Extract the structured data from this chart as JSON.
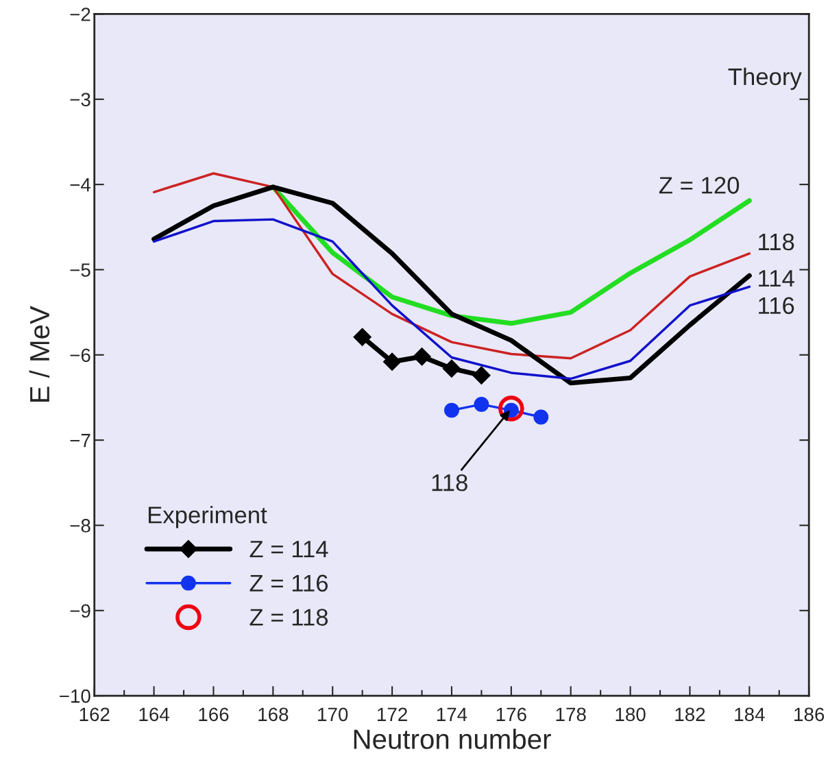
{
  "chart_data": {
    "type": "line",
    "xlabel": "Neutron number",
    "ylabel": "E / MeV",
    "xlim": [
      162,
      186
    ],
    "xticks": [
      162,
      164,
      166,
      168,
      170,
      172,
      174,
      176,
      178,
      180,
      182,
      184,
      186
    ],
    "ylim": [
      -10,
      -2
    ],
    "yticks": [
      -10,
      -9,
      -8,
      -7,
      -6,
      -5,
      -4,
      -3,
      -2
    ],
    "grid": false,
    "legend": "bottom left",
    "legend_title": "Experiment",
    "series": [
      {
        "name": "Z = 120",
        "color": "#22dd22",
        "x": [
          168,
          170,
          172,
          174,
          176,
          178,
          180,
          182,
          184
        ],
        "values": [
          -4.03,
          -4.8,
          -5.32,
          -5.54,
          -5.63,
          -5.5,
          -5.04,
          -4.65,
          -4.19
        ]
      },
      {
        "name": "118",
        "color": "#cc2222",
        "x": [
          164,
          166,
          168,
          170,
          172,
          174,
          176,
          178,
          180,
          182,
          184
        ],
        "values": [
          -4.09,
          -3.87,
          -4.03,
          -5.05,
          -5.52,
          -5.85,
          -5.99,
          -6.04,
          -5.71,
          -5.08,
          -4.81
        ]
      },
      {
        "name": "114",
        "color": "#000000",
        "x": [
          164,
          166,
          168,
          170,
          172,
          174,
          176,
          178,
          180,
          182,
          184
        ],
        "values": [
          -4.64,
          -4.25,
          -4.03,
          -4.22,
          -4.81,
          -5.52,
          -5.83,
          -6.33,
          -6.27,
          -5.65,
          -5.07
        ]
      },
      {
        "name": "116",
        "color": "#1111cc",
        "x": [
          164,
          166,
          168,
          170,
          172,
          174,
          176,
          178,
          180,
          182,
          184
        ],
        "values": [
          -4.67,
          -4.43,
          -4.41,
          -4.67,
          -5.42,
          -6.03,
          -6.21,
          -6.28,
          -6.07,
          -5.42,
          -5.2
        ]
      },
      {
        "name": "Z = 114",
        "color": "#000000",
        "marker": "diamond",
        "x": [
          171,
          172,
          173,
          174,
          175
        ],
        "values": [
          -5.79,
          -6.08,
          -6.02,
          -6.16,
          -6.24
        ]
      },
      {
        "name": "Z = 116",
        "color": "#1133ee",
        "marker": "circle",
        "x": [
          174,
          175,
          176,
          177
        ],
        "values": [
          -6.65,
          -6.58,
          -6.65,
          -6.73
        ]
      },
      {
        "name": "Z = 118",
        "color": "#ee0011",
        "type": "scatter",
        "marker": "circle",
        "x": [
          176
        ],
        "values": [
          -6.63
        ]
      }
    ],
    "annotations": [
      "Theory",
      {
        "text": "118",
        "x": 176,
        "y": -6.63
      }
    ]
  }
}
